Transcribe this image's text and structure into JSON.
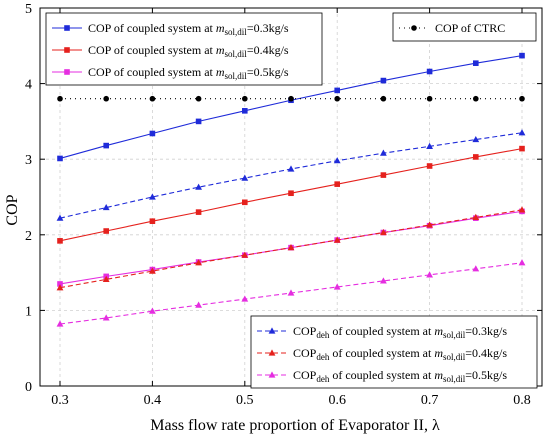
{
  "chart_data": {
    "type": "line",
    "xlabel": "Mass flow rate proportion of Evaporator II, λ",
    "ylabel": "COP",
    "xlim": [
      0.3,
      0.8
    ],
    "ylim": [
      0,
      5
    ],
    "x_ticks": [
      0.3,
      0.4,
      0.5,
      0.6,
      0.7,
      0.8
    ],
    "y_ticks": [
      0,
      1,
      2,
      3,
      4,
      5
    ],
    "x": [
      0.3,
      0.35,
      0.4,
      0.45,
      0.5,
      0.55,
      0.6,
      0.65,
      0.7,
      0.75,
      0.8
    ],
    "grid": true,
    "series": [
      {
        "key": "cop_03",
        "name_prefix": "COP of coupled system at ",
        "name_suffix": "0.3kg/s",
        "color": "#1f2bd9",
        "marker": "square",
        "dash": "solid",
        "values": [
          3.01,
          3.18,
          3.34,
          3.5,
          3.64,
          3.78,
          3.91,
          4.04,
          4.16,
          4.27,
          4.37
        ]
      },
      {
        "key": "cop_04",
        "name_prefix": "COP of coupled system at ",
        "name_suffix": "0.4kg/s",
        "color": "#e5211d",
        "marker": "square",
        "dash": "solid",
        "values": [
          1.92,
          2.05,
          2.18,
          2.3,
          2.43,
          2.55,
          2.67,
          2.79,
          2.91,
          3.03,
          3.14
        ]
      },
      {
        "key": "cop_05",
        "name_prefix": "COP of coupled system at ",
        "name_suffix": "0.5kg/s",
        "color": "#e52de0",
        "marker": "square",
        "dash": "solid",
        "values": [
          1.35,
          1.45,
          1.54,
          1.64,
          1.73,
          1.83,
          1.93,
          2.03,
          2.12,
          2.22,
          2.31
        ]
      },
      {
        "key": "ctrc",
        "name": "COP of CTRC",
        "color": "#000000",
        "marker": "circle",
        "dash": "dotted",
        "values": [
          3.8,
          3.8,
          3.8,
          3.8,
          3.8,
          3.8,
          3.8,
          3.8,
          3.8,
          3.8,
          3.8
        ]
      },
      {
        "key": "deh_03",
        "name_prefix": "COP",
        "name_sub": "deh",
        "name_mid": " of coupled system at ",
        "name_suffix": "0.3kg/s",
        "color": "#1f2bd9",
        "marker": "triangle",
        "dash": "dashed",
        "values": [
          2.22,
          2.36,
          2.5,
          2.63,
          2.75,
          2.87,
          2.98,
          3.08,
          3.17,
          3.26,
          3.35
        ]
      },
      {
        "key": "deh_04",
        "name_prefix": "COP",
        "name_sub": "deh",
        "name_mid": " of coupled system at ",
        "name_suffix": "0.4kg/s",
        "color": "#e5211d",
        "marker": "triangle",
        "dash": "dashed",
        "values": [
          1.3,
          1.41,
          1.52,
          1.63,
          1.73,
          1.83,
          1.93,
          2.03,
          2.13,
          2.23,
          2.33
        ]
      },
      {
        "key": "deh_05",
        "name_prefix": "COP",
        "name_sub": "deh",
        "name_mid": " of coupled system at ",
        "name_suffix": "0.5kg/s",
        "color": "#e52de0",
        "marker": "triangle",
        "dash": "dashed",
        "values": [
          0.82,
          0.9,
          0.99,
          1.07,
          1.15,
          1.23,
          1.31,
          1.39,
          1.47,
          1.55,
          1.63
        ]
      }
    ],
    "legends": [
      {
        "position": "top-left",
        "series_keys": [
          "cop_03",
          "cop_04",
          "cop_05"
        ]
      },
      {
        "position": "top-right",
        "series_keys": [
          "ctrc"
        ]
      },
      {
        "position": "bottom-right",
        "series_keys": [
          "deh_03",
          "deh_04",
          "deh_05"
        ]
      }
    ],
    "mdot_symbol": "m",
    "mdot_subscript": "sol,dil",
    "mdot_equals": "="
  }
}
